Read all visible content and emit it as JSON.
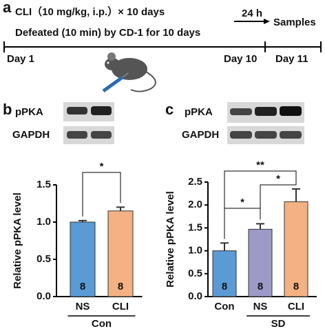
{
  "panel_a": {
    "label": "a",
    "treatment": "CLI（10 mg/kg, i.p.）× 10 days",
    "defeat": "Defeated (10 min) by CD-1 for 10 days",
    "interval": "24 h",
    "end": "Samples",
    "day_start": "Day 1",
    "day_mid": "Day 10",
    "day_end": "Day 11"
  },
  "blots": [
    {
      "band1": "pPKA",
      "band2": "GAPDH"
    },
    {
      "band1": "pPKA",
      "band2": "GAPDH"
    }
  ],
  "chart_data": [
    {
      "type": "bar",
      "panel": "b",
      "ylabel": "Relative pPKA level",
      "categories": [
        "NS",
        "CLI"
      ],
      "values": [
        1.0,
        1.15
      ],
      "errors": [
        0.02,
        0.05
      ],
      "colors": [
        "#5b9bd5",
        "#f4b183"
      ],
      "n_labels": [
        "8",
        "8"
      ],
      "ylim": [
        0,
        1.5
      ],
      "yticks": [
        {
          "value": 0,
          "label": "0.0"
        },
        0.5,
        {
          "value": 1,
          "label": "1.0"
        },
        1.5
      ],
      "groups": [
        {
          "label": "Con",
          "from": 0,
          "to": 1
        }
      ],
      "significance": [
        {
          "from": 0,
          "to": 1,
          "label": "*"
        }
      ]
    },
    {
      "type": "bar",
      "panel": "c",
      "ylabel": "Relative pPKA level",
      "categories": [
        "Con",
        "NS",
        "CLI"
      ],
      "values": [
        1.0,
        1.47,
        2.07
      ],
      "errors": [
        0.17,
        0.12,
        0.28
      ],
      "colors": [
        "#5b9bd5",
        "#9e9ac8",
        "#f4b183"
      ],
      "n_labels": [
        "8",
        "8",
        "8"
      ],
      "ylim": [
        0,
        2.5
      ],
      "yticks": [
        {
          "value": 0,
          "label": "0.0"
        },
        0.5,
        {
          "value": 1,
          "label": "1.0"
        },
        1.5,
        {
          "value": 2,
          "label": "2.0"
        },
        2.5
      ],
      "groups": [
        {
          "label": "SD",
          "from": 1,
          "to": 2
        }
      ],
      "significance": [
        {
          "from": 0,
          "to": 1,
          "label": "*"
        },
        {
          "from": 1,
          "to": 2,
          "label": "*"
        },
        {
          "from": 0,
          "to": 2,
          "label": "**"
        }
      ]
    }
  ]
}
